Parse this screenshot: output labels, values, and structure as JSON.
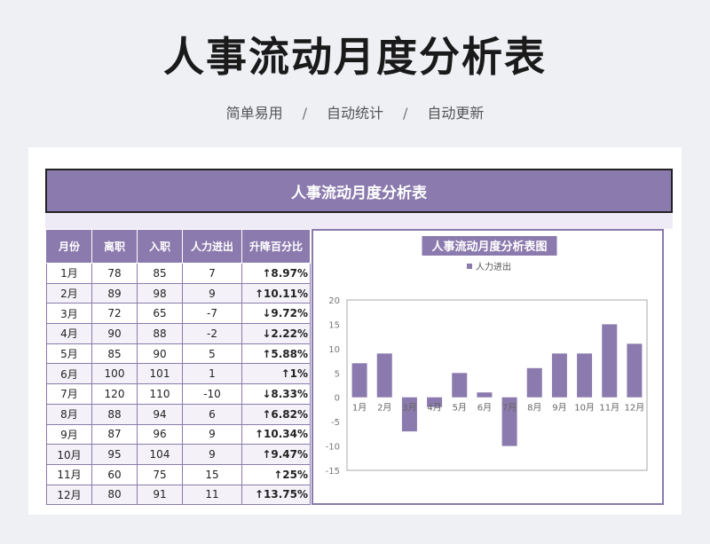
{
  "page": {
    "title": "人事流动月度分析表",
    "tags": [
      "简单易用",
      "自动统计",
      "自动更新"
    ],
    "separator": "/"
  },
  "sheet": {
    "header": "人事流动月度分析表",
    "columns": [
      "月份",
      "离职",
      "入职",
      "人力进出",
      "升降百分比"
    ],
    "rows": [
      {
        "month": "1月",
        "leave": "78",
        "join": "85",
        "net": "7",
        "pct": "↑8.97%"
      },
      {
        "month": "2月",
        "leave": "89",
        "join": "98",
        "net": "9",
        "pct": "↑10.11%"
      },
      {
        "month": "3月",
        "leave": "72",
        "join": "65",
        "net": "-7",
        "pct": "↓9.72%"
      },
      {
        "month": "4月",
        "leave": "90",
        "join": "88",
        "net": "-2",
        "pct": "↓2.22%"
      },
      {
        "month": "5月",
        "leave": "85",
        "join": "90",
        "net": "5",
        "pct": "↑5.88%"
      },
      {
        "month": "6月",
        "leave": "100",
        "join": "101",
        "net": "1",
        "pct": "↑1%"
      },
      {
        "month": "7月",
        "leave": "120",
        "join": "110",
        "net": "-10",
        "pct": "↓8.33%"
      },
      {
        "month": "8月",
        "leave": "88",
        "join": "94",
        "net": "6",
        "pct": "↑6.82%"
      },
      {
        "month": "9月",
        "leave": "87",
        "join": "96",
        "net": "9",
        "pct": "↑10.34%"
      },
      {
        "month": "10月",
        "leave": "95",
        "join": "104",
        "net": "9",
        "pct": "↑9.47%"
      },
      {
        "month": "11月",
        "leave": "60",
        "join": "75",
        "net": "15",
        "pct": "↑25%"
      },
      {
        "month": "12月",
        "leave": "80",
        "join": "91",
        "net": "11",
        "pct": "↑13.75%"
      }
    ]
  },
  "colors": {
    "accent": "#8b7aad",
    "band": "#efebf6",
    "bar": "#8b7aad"
  },
  "chart_data": {
    "type": "bar",
    "title": "人事流动月度分析表图",
    "categories": [
      "1月",
      "2月",
      "3月",
      "4月",
      "5月",
      "6月",
      "7月",
      "8月",
      "9月",
      "10月",
      "11月",
      "12月"
    ],
    "series": [
      {
        "name": "人力进出",
        "values": [
          7,
          9,
          -7,
          -2,
          5,
          1,
          -10,
          6,
          9,
          9,
          15,
          11
        ]
      }
    ],
    "ylim": [
      -15,
      20
    ],
    "yticks": [
      -15,
      -10,
      -5,
      0,
      5,
      10,
      15,
      20
    ],
    "legend": "top",
    "grid": false
  }
}
